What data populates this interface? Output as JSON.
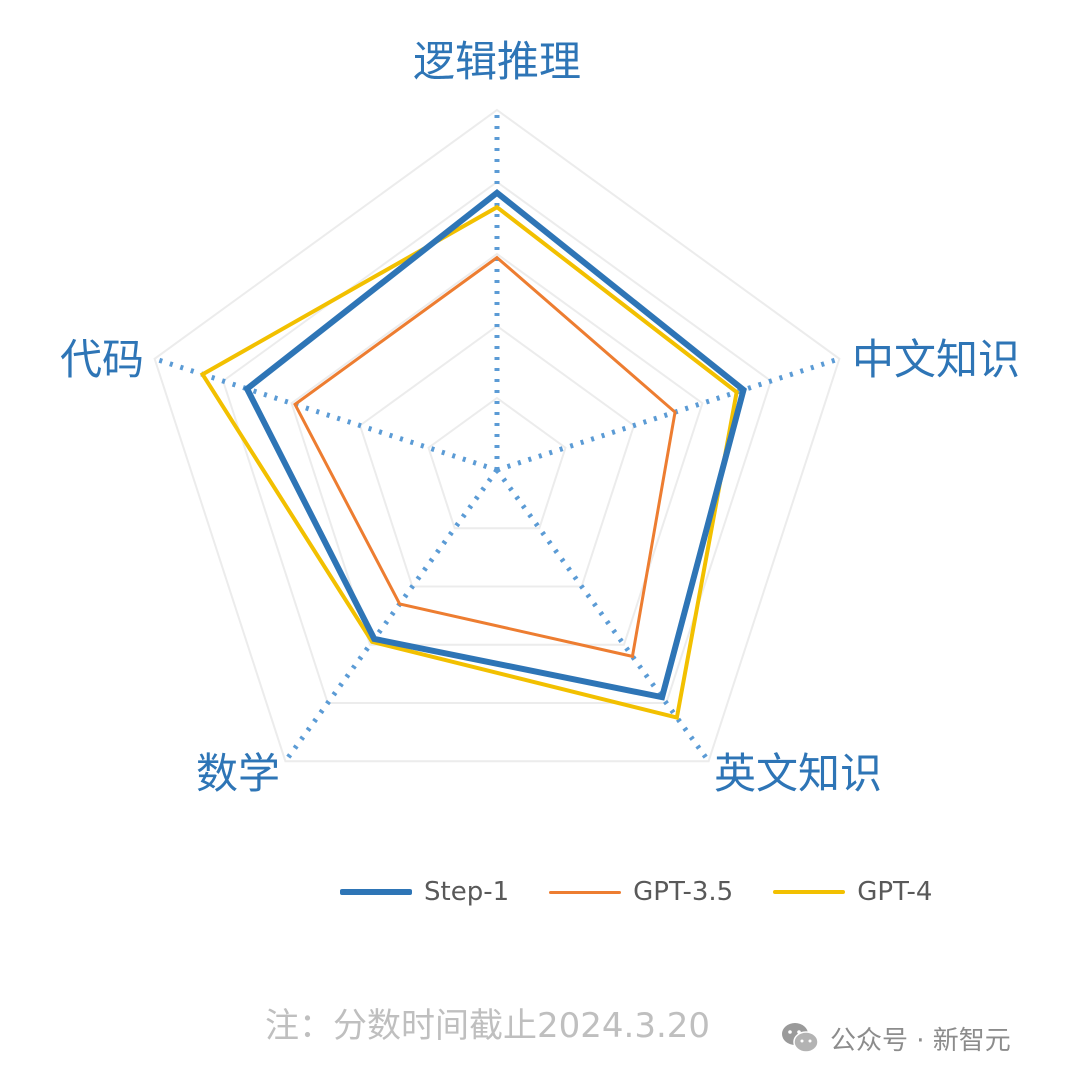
{
  "chart_data": {
    "type": "radar",
    "title": "",
    "axes": [
      "逻辑推理",
      "中文知识",
      "英文知识",
      "数学",
      "代码"
    ],
    "range": [
      0,
      100
    ],
    "grid_levels": 5,
    "series": [
      {
        "name": "Step-1",
        "color": "#2e75b6",
        "values": [
          77,
          72,
          78,
          58,
          73
        ]
      },
      {
        "name": "GPT-3.5",
        "color": "#ed7d31",
        "values": [
          59,
          52,
          64,
          46,
          59
        ]
      },
      {
        "name": "GPT-4",
        "color": "#f2c000",
        "values": [
          73,
          70,
          85,
          59,
          86
        ]
      }
    ]
  },
  "footnote": "注：分数时间截止2024.3.20",
  "watermark": {
    "icon": "wechat-icon",
    "text": "公众号 · 新智元"
  }
}
